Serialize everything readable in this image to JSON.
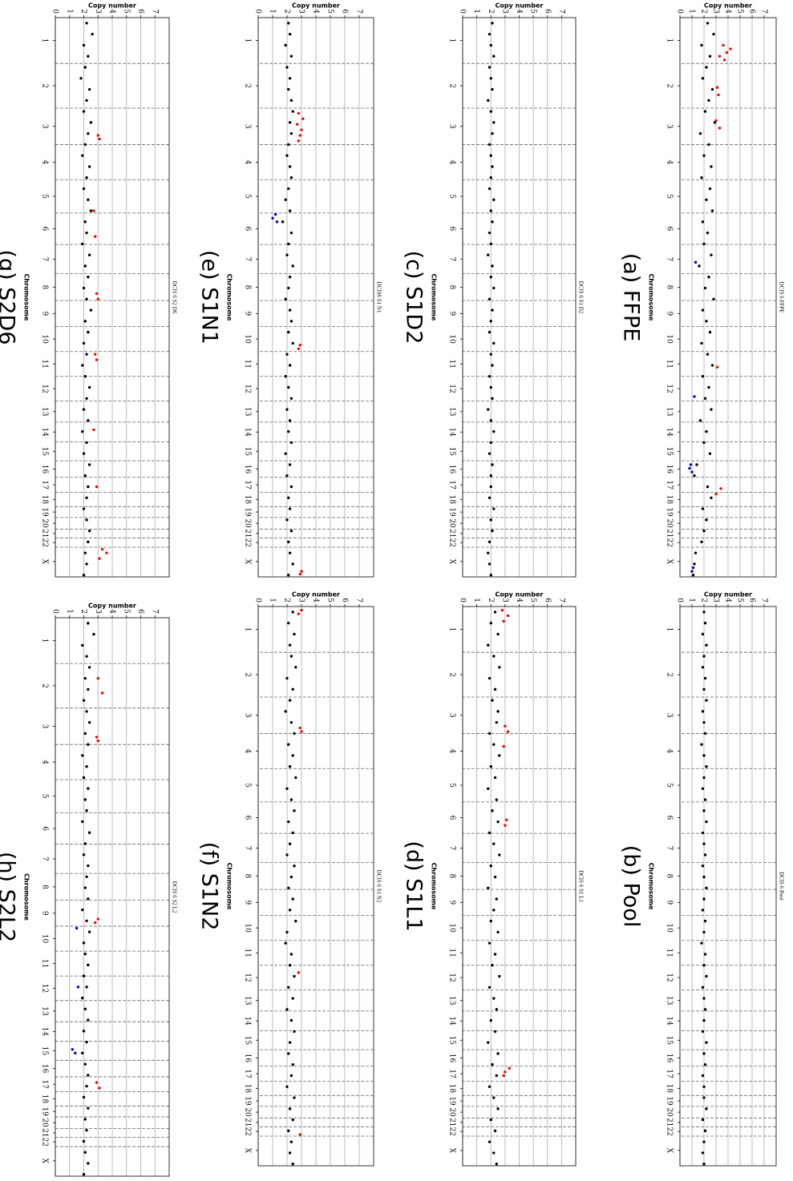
{
  "genome": {
    "xlim": [
      0,
      3040
    ],
    "xticks": [
      {
        "value": 124.5,
        "label": "1"
      },
      {
        "value": 370.5,
        "label": "2"
      },
      {
        "value": 591,
        "label": "3"
      },
      {
        "value": 785.5,
        "label": "4"
      },
      {
        "value": 971.5,
        "label": "5"
      },
      {
        "value": 1147.5,
        "label": "6"
      },
      {
        "value": 1312.5,
        "label": "7"
      },
      {
        "value": 1465,
        "label": "8"
      },
      {
        "value": 1608.5,
        "label": "9"
      },
      {
        "value": 1747,
        "label": "10"
      },
      {
        "value": 1882.5,
        "label": "11"
      },
      {
        "value": 2017,
        "label": "12"
      },
      {
        "value": 2141.5,
        "label": "13"
      },
      {
        "value": 2252.5,
        "label": "14"
      },
      {
        "value": 2357.5,
        "label": "15"
      },
      {
        "value": 2454,
        "label": "16"
      },
      {
        "value": 2539.5,
        "label": "17"
      },
      {
        "value": 2619,
        "label": "18"
      },
      {
        "value": 2687.5,
        "label": "19"
      },
      {
        "value": 2748.5,
        "label": "20"
      },
      {
        "value": 2804,
        "label": "21"
      },
      {
        "value": 2853.5,
        "label": "22"
      },
      {
        "value": 2956.5,
        "label": "X"
      }
    ],
    "boundaries": [
      249,
      492,
      690,
      881,
      1062,
      1233,
      1392,
      1538,
      1679,
      1815,
      1950,
      2084,
      2199,
      2306,
      2409,
      2499,
      2580,
      2658,
      2717,
      2780,
      2828,
      2879
    ],
    "bins": [
      30,
      90,
      150,
      210,
      270,
      330,
      390,
      450,
      510,
      570,
      630,
      690,
      750,
      810,
      870,
      930,
      990,
      1050,
      1110,
      1170,
      1230,
      1290,
      1350,
      1410,
      1470,
      1530,
      1590,
      1650,
      1710,
      1770,
      1830,
      1890,
      1950,
      2010,
      2070,
      2130,
      2190,
      2250,
      2310,
      2370,
      2430,
      2490,
      2550,
      2610,
      2670,
      2730,
      2790,
      2850,
      2910,
      2970,
      3030
    ]
  },
  "chart_data": [
    {
      "type": "scatter",
      "title": "DCIS 6 FFPE",
      "caption": "(a) FFPE",
      "xlabel": "Chromosome",
      "ylabel": "Copy number",
      "ylim": [
        0,
        8
      ],
      "yticks": [
        0,
        1,
        2,
        3,
        4,
        5,
        6,
        7
      ],
      "grid": true,
      "series": [
        {
          "color": "#000000",
          "values": [
            2.3,
            2.8,
            1.8,
            2.5,
            2.2,
            1.9,
            2.7,
            2.4,
            2.1,
            2.9,
            1.7,
            2.4,
            2.0,
            2.6,
            1.8,
            2.5,
            2.2,
            2.7,
            1.9,
            2.3,
            2.0,
            2.6,
            1.6,
            2.4,
            2.1,
            2.8,
            1.9,
            2.2,
            2.5,
            1.8,
            2.3,
            2.7,
            1.9,
            2.4,
            2.1,
            2.6,
            1.7,
            2.2,
            2.0,
            2.5,
            1.4,
            1.2,
            2.3,
            2.6,
            1.9,
            2.2,
            2.0,
            1.8,
            1.3,
            1.2,
            1.1
          ]
        },
        {
          "color": "#ff0000",
          "x": [
            150,
            170,
            190,
            210,
            230,
            380,
            420,
            560,
            600,
            1900,
            2560,
            2590
          ],
          "values": [
            3.6,
            4.2,
            3.9,
            3.3,
            3.7,
            3.1,
            3.2,
            3.0,
            3.3,
            3.1,
            3.4,
            3.0
          ]
        },
        {
          "color": "#0000cc",
          "x": [
            1330,
            2060,
            2430,
            2450,
            2470,
            2990,
            3010
          ],
          "values": [
            1.3,
            1.2,
            0.9,
            0.8,
            1.0,
            1.1,
            1.0
          ]
        }
      ]
    },
    {
      "type": "scatter",
      "title": "DCIS 6 Pool",
      "caption": "(b) Pool",
      "xlabel": "Chromosome",
      "ylabel": "Copy number",
      "ylim": [
        0,
        8
      ],
      "yticks": [
        0,
        1,
        2,
        3,
        4,
        5,
        6,
        7
      ],
      "grid": true,
      "series": [
        {
          "color": "#000000",
          "values": [
            2.0,
            2.1,
            1.9,
            2.2,
            2.0,
            1.9,
            2.1,
            2.0,
            2.2,
            1.9,
            2.0,
            2.1,
            1.8,
            2.0,
            2.2,
            2.0,
            1.9,
            2.1,
            2.0,
            2.2,
            1.9,
            2.0,
            2.1,
            1.9,
            2.0,
            2.2,
            2.0,
            1.9,
            2.1,
            2.0,
            1.8,
            2.1,
            2.0,
            2.2,
            1.9,
            2.0,
            2.1,
            2.0,
            1.9,
            2.2,
            2.0,
            2.1,
            1.9,
            2.0,
            2.0,
            2.2,
            1.9,
            2.1,
            2.0,
            1.9,
            2.0
          ]
        }
      ]
    },
    {
      "type": "scatter",
      "title": "DCIS 6 S1 D2",
      "caption": "(c) S1D2",
      "xlabel": "Chromosome",
      "ylabel": "Copy number",
      "ylim": [
        0,
        8
      ],
      "yticks": [
        0,
        1,
        2,
        3,
        4,
        5,
        6,
        7
      ],
      "grid": true,
      "series": [
        {
          "color": "#000000",
          "values": [
            2.1,
            1.9,
            2.0,
            2.2,
            1.9,
            2.0,
            2.1,
            1.8,
            2.0,
            2.2,
            2.1,
            1.9,
            2.0,
            2.1,
            2.0,
            1.9,
            2.2,
            2.0,
            2.1,
            1.9,
            2.0,
            1.8,
            2.1,
            2.0,
            2.2,
            1.9,
            2.1,
            2.0,
            1.9,
            2.2,
            2.0,
            2.1,
            1.9,
            2.0,
            2.1,
            1.8,
            2.0,
            2.2,
            2.0,
            1.9,
            2.1,
            2.0,
            2.0,
            1.9,
            2.2,
            2.0,
            2.1,
            1.9,
            1.8,
            1.9,
            2.0
          ]
        }
      ]
    },
    {
      "type": "scatter",
      "title": "DCIS 6 S1 L1",
      "caption": "(d) S1L1",
      "xlabel": "Chromosome",
      "ylabel": "Copy number",
      "ylim": [
        0,
        8
      ],
      "yticks": [
        0,
        1,
        2,
        3,
        4,
        5,
        6,
        7
      ],
      "grid": true,
      "series": [
        {
          "color": "#000000",
          "values": [
            2.3,
            2.0,
            2.5,
            1.8,
            2.2,
            2.6,
            1.9,
            2.3,
            2.1,
            2.5,
            2.4,
            1.9,
            2.2,
            2.6,
            2.0,
            2.3,
            1.8,
            2.4,
            2.1,
            2.5,
            1.9,
            2.2,
            2.6,
            2.0,
            2.3,
            1.8,
            2.4,
            2.2,
            2.0,
            2.5,
            1.9,
            2.3,
            2.1,
            2.6,
            1.9,
            2.2,
            2.4,
            2.0,
            2.3,
            1.8,
            2.5,
            2.1,
            2.4,
            1.9,
            2.2,
            2.5,
            2.0,
            2.3,
            1.9,
            2.2,
            2.4
          ]
        },
        {
          "color": "#ff0000",
          "x": [
            20,
            50,
            80,
            650,
            680,
            760,
            1160,
            1190,
            2510,
            2530,
            2550
          ],
          "values": [
            2.8,
            3.2,
            2.9,
            3.0,
            3.2,
            2.9,
            3.1,
            3.0,
            3.3,
            3.0,
            2.9
          ]
        }
      ]
    },
    {
      "type": "scatter",
      "title": "DCIS6 S1 N1",
      "caption": "(e) S1N1",
      "xlabel": "Chromosome",
      "ylabel": "Copy number",
      "ylim": [
        0,
        8
      ],
      "yticks": [
        0,
        1,
        2,
        3,
        4,
        5,
        6,
        7
      ],
      "grid": true,
      "series": [
        {
          "color": "#000000",
          "values": [
            2.1,
            2.2,
            1.9,
            2.3,
            2.0,
            2.2,
            2.1,
            2.3,
            2.4,
            2.2,
            2.3,
            2.1,
            2.0,
            2.2,
            2.3,
            2.1,
            1.9,
            2.2,
            1.7,
            2.3,
            2.1,
            2.0,
            2.4,
            2.2,
            2.1,
            1.9,
            2.2,
            2.3,
            2.1,
            2.4,
            2.0,
            2.2,
            1.9,
            2.1,
            2.3,
            2.0,
            2.2,
            2.1,
            2.3,
            1.9,
            2.2,
            2.0,
            2.3,
            2.1,
            2.2,
            2.0,
            2.3,
            2.1,
            2.2,
            2.4,
            2.1
          ]
        },
        {
          "color": "#ff0000",
          "x": [
            520,
            550,
            580,
            610,
            640,
            670,
            1780,
            1800,
            3010,
            3025
          ],
          "values": [
            2.8,
            3.1,
            2.7,
            3.0,
            2.9,
            2.8,
            2.9,
            2.8,
            3.0,
            2.9
          ]
        },
        {
          "color": "#0000cc",
          "x": [
            1070,
            1090,
            1110
          ],
          "values": [
            1.2,
            1.0,
            1.3
          ]
        }
      ]
    },
    {
      "type": "scatter",
      "title": "DCIS 6 S1 N2",
      "caption": "(f) S1N2",
      "xlabel": "Chromosome",
      "ylabel": "Copy number",
      "ylim": [
        0,
        8
      ],
      "yticks": [
        0,
        1,
        2,
        3,
        4,
        5,
        6,
        7
      ],
      "grid": true,
      "series": [
        {
          "color": "#000000",
          "values": [
            2.4,
            2.1,
            2.5,
            2.2,
            2.3,
            2.6,
            2.0,
            2.4,
            2.2,
            1.9,
            2.3,
            2.5,
            2.1,
            2.4,
            2.2,
            2.6,
            2.0,
            2.3,
            2.5,
            2.1,
            2.4,
            2.2,
            2.0,
            2.5,
            2.3,
            2.1,
            2.4,
            2.2,
            2.6,
            2.0,
            1.9,
            2.3,
            2.2,
            2.5,
            2.1,
            2.4,
            2.0,
            2.3,
            2.5,
            2.2,
            2.1,
            2.4,
            2.3,
            2.0,
            2.5,
            2.2,
            2.4,
            2.1,
            2.3,
            2.2,
            2.4
          ]
        },
        {
          "color": "#ff0000",
          "x": [
            20,
            40,
            660,
            680,
            1990,
            2870
          ],
          "values": [
            3.0,
            2.8,
            2.9,
            3.0,
            2.8,
            2.9
          ]
        }
      ]
    },
    {
      "type": "scatter",
      "title": "DCIS 6 S2 D6",
      "caption": "(g) S2D6",
      "xlabel": "Chromosome",
      "ylabel": "Copy number",
      "ylim": [
        0,
        8
      ],
      "yticks": [
        0,
        1,
        2,
        3,
        4,
        5,
        6,
        7
      ],
      "grid": true,
      "series": [
        {
          "color": "#000000",
          "values": [
            2.2,
            2.6,
            2.0,
            2.3,
            2.1,
            1.8,
            2.4,
            2.2,
            2.0,
            2.5,
            2.3,
            2.1,
            1.9,
            2.4,
            2.2,
            2.0,
            2.3,
            2.5,
            2.1,
            2.2,
            1.9,
            2.4,
            2.1,
            2.3,
            2.0,
            2.2,
            2.5,
            2.1,
            2.3,
            2.0,
            2.2,
            1.9,
            2.1,
            2.4,
            2.2,
            2.0,
            2.3,
            1.9,
            2.2,
            2.0,
            2.4,
            2.1,
            2.3,
            2.2,
            2.0,
            2.2,
            2.4,
            2.3,
            2.1,
            2.2,
            2.0
          ]
        },
        {
          "color": "#ff0000",
          "x": [
            640,
            660,
            1050,
            1190,
            1500,
            1530,
            1830,
            1860,
            2240,
            2550,
            2890,
            2910,
            2940
          ],
          "values": [
            3.0,
            3.1,
            2.7,
            2.8,
            2.9,
            3.0,
            2.8,
            2.9,
            2.7,
            2.9,
            3.3,
            3.6,
            3.1
          ]
        }
      ]
    },
    {
      "type": "scatter",
      "title": "DCIS 6 S2 L2",
      "caption": "(h) S2L2",
      "xlabel": "Chromosome",
      "ylabel": "Copy number",
      "ylim": [
        0,
        8
      ],
      "yticks": [
        0,
        1,
        2,
        3,
        4,
        5,
        6,
        7
      ],
      "grid": true,
      "series": [
        {
          "color": "#000000",
          "values": [
            2.3,
            2.7,
            1.9,
            2.2,
            2.4,
            2.1,
            2.3,
            2.0,
            2.2,
            2.4,
            2.1,
            2.3,
            1.9,
            2.2,
            2.0,
            2.3,
            2.1,
            2.2,
            1.9,
            2.4,
            2.1,
            2.0,
            2.3,
            2.2,
            2.1,
            2.3,
            1.9,
            2.2,
            2.4,
            2.0,
            2.1,
            2.3,
            2.0,
            2.2,
            1.9,
            2.1,
            2.3,
            2.0,
            2.2,
            1.9,
            2.1,
            2.3,
            2.2,
            2.0,
            2.3,
            2.1,
            2.2,
            2.0,
            2.1,
            2.3,
            2.0
          ]
        },
        {
          "color": "#ff0000",
          "x": [
            330,
            410,
            650,
            670,
            1640,
            1660,
            2530,
            2560
          ],
          "values": [
            3.0,
            3.3,
            2.9,
            3.0,
            3.0,
            2.8,
            2.9,
            3.1
          ]
        },
        {
          "color": "#0000cc",
          "x": [
            1690,
            2010,
            2350,
            2370
          ],
          "values": [
            1.5,
            1.6,
            1.2,
            1.4
          ]
        }
      ]
    }
  ]
}
